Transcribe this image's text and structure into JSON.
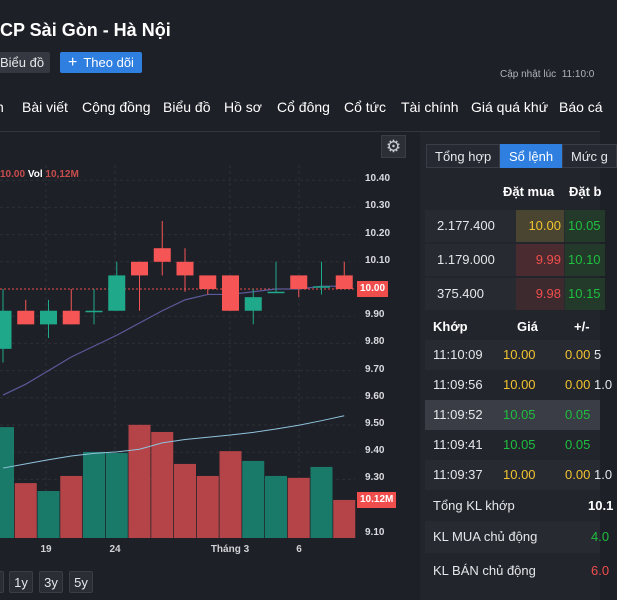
{
  "header": {
    "title": "CP Sài Gòn - Hà Nội",
    "chart_button": "Biểu đồ",
    "follow_button": "Theo dõi",
    "updated_label": "Cập nhật lúc",
    "updated_time": "11:10:0"
  },
  "nav": [
    "n",
    "Bài viết",
    "Cộng đồng",
    "Biểu đồ",
    "Hồ sơ",
    "Cổ đông",
    "Cổ tức",
    "Tài chính",
    "Giá quá khứ",
    "Báo cá"
  ],
  "chart_legend": {
    "close": "10.00",
    "vol_label": "Vol",
    "vol": "10,12M"
  },
  "chart_data": {
    "type": "candlestick",
    "price_ticks": [
      "10.40",
      "10.30",
      "10.20",
      "10.10",
      "9.90",
      "9.80",
      "9.70",
      "9.60",
      "9.50",
      "9.40",
      "9.30",
      "9.10"
    ],
    "x_labels": [
      "19",
      "24",
      "Tháng 3",
      "6"
    ],
    "x_label_index": [
      2,
      5,
      10,
      13
    ],
    "last_price_tag": "10.00",
    "last_volume_tag": "10.12M",
    "colors": {
      "up": "#1fa88a",
      "down": "#f55555",
      "ma": "#5b5a9a",
      "vol_ma": "#8fc3dd"
    },
    "ohlc": [
      [
        9.78,
        10.0,
        9.73,
        9.92
      ],
      [
        9.92,
        9.96,
        9.87,
        9.87
      ],
      [
        9.87,
        9.96,
        9.82,
        9.92
      ],
      [
        9.92,
        10.0,
        9.87,
        9.87
      ],
      [
        9.92,
        10.0,
        9.87,
        9.92
      ],
      [
        9.92,
        10.1,
        9.92,
        10.05
      ],
      [
        10.1,
        10.1,
        9.92,
        10.05
      ],
      [
        10.15,
        10.25,
        10.05,
        10.1
      ],
      [
        10.1,
        10.15,
        9.99,
        10.05
      ],
      [
        10.05,
        10.05,
        9.98,
        10.0
      ],
      [
        10.05,
        10.05,
        9.92,
        9.92
      ],
      [
        9.92,
        10.0,
        9.87,
        9.97
      ],
      [
        9.99,
        10.1,
        9.99,
        9.99
      ],
      [
        10.05,
        10.05,
        9.97,
        10.0
      ],
      [
        10.01,
        10.1,
        9.98,
        10.01
      ],
      [
        10.05,
        10.1,
        10.0,
        10.0
      ]
    ],
    "volume_m": [
      29.5,
      14.6,
      12.5,
      16.5,
      22.9,
      22.6,
      30.1,
      28.2,
      19.7,
      16.5,
      23.1,
      20.5,
      16.5,
      16.0,
      18.9,
      10.12
    ],
    "volume_up": [
      true,
      false,
      true,
      false,
      true,
      true,
      false,
      false,
      false,
      false,
      false,
      true,
      true,
      false,
      true,
      false
    ],
    "ma": [
      9.61,
      9.65,
      9.7,
      9.75,
      9.79,
      9.83,
      9.875,
      9.92,
      9.96,
      9.98,
      9.98,
      9.99,
      10.0,
      10.0,
      10.01,
      10.01
    ],
    "vol_ma": [
      18.6,
      19.7,
      20.8,
      21.8,
      22.5,
      22.9,
      23.6,
      25.3,
      26.2,
      26.8,
      27.4,
      28.1,
      29.0,
      30.0,
      31.2,
      32.5
    ]
  },
  "ranges": [
    "1y",
    "3y",
    "5y"
  ],
  "panel": {
    "tabs": [
      "Tổng hợp",
      "Sổ lệnh",
      "Mức g"
    ],
    "book_headers": [
      "Đặt mua",
      "Đặt b"
    ],
    "book": [
      {
        "qty": "2.177.400",
        "bid": "10.00",
        "ask": "10.05"
      },
      {
        "qty": "1.179.000",
        "bid": "9.99",
        "ask": "10.10"
      },
      {
        "qty": "375.400",
        "bid": "9.98",
        "ask": "10.15"
      }
    ],
    "trade_headers": [
      "Khớp",
      "Giá",
      "+/-"
    ],
    "trades": [
      {
        "time": "11:10:09",
        "price": "10.00",
        "change": "0.00",
        "vol": "5"
      },
      {
        "time": "11:09:56",
        "price": "10.00",
        "change": "0.00",
        "vol": "1.0"
      },
      {
        "time": "11:09:52",
        "price": "10.05",
        "change": "0.05",
        "vol": ""
      },
      {
        "time": "11:09:41",
        "price": "10.05",
        "change": "0.05",
        "vol": ""
      },
      {
        "time": "11:09:37",
        "price": "10.00",
        "change": "0.00",
        "vol": "1.0"
      }
    ],
    "summary": [
      {
        "label": "Tổng KL khớp",
        "value": "10.1"
      },
      {
        "label": "KL MUA chủ động",
        "value": "4.0"
      },
      {
        "label": "KL BÁN chủ động",
        "value": "6.0"
      }
    ]
  }
}
